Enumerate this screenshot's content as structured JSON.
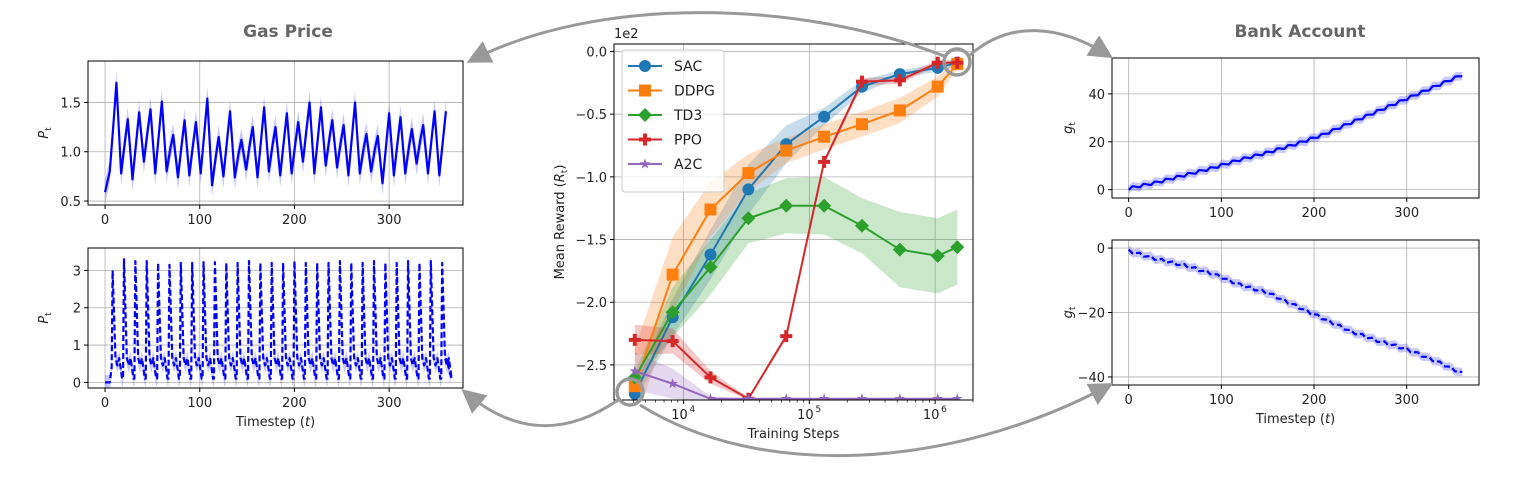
{
  "colors": {
    "SAC": "#1f77b4",
    "DDPG": "#ff7f0e",
    "TD3": "#2ca02c",
    "PPO": "#d62728",
    "A2C": "#9467bd",
    "series_blue": "#0000ff",
    "arrow": "#999999"
  },
  "panels": {
    "gas_price_title": "Gas Price",
    "bank_account_title": "Bank Account"
  },
  "chart_data": [
    {
      "id": "gas_top",
      "type": "line",
      "title": "",
      "xlabel": "",
      "ylabel": "P_t",
      "ylabel_main": "P",
      "ylabel_sub": "t",
      "xlim": [
        -18,
        378
      ],
      "ylim": [
        0.46,
        1.92
      ],
      "xticks": [
        "0",
        "100",
        "200",
        "300"
      ],
      "xtick_values": [
        0,
        100,
        200,
        300
      ],
      "yticks": [
        "0.5",
        "1.0",
        "1.5"
      ],
      "ytick_values": [
        0.5,
        1.0,
        1.5
      ],
      "grid": true,
      "linestyle": "solid",
      "start_value": 0.59,
      "peak_t": [
        12,
        24,
        36,
        48,
        60,
        72,
        84,
        96,
        108,
        120,
        132,
        144,
        156,
        168,
        180,
        192,
        204,
        216,
        228,
        240,
        252,
        264,
        276,
        288,
        300,
        312,
        324,
        336,
        348,
        360
      ],
      "peak_values": [
        1.7,
        1.33,
        1.4,
        1.43,
        1.51,
        1.17,
        1.32,
        1.3,
        1.54,
        1.15,
        1.41,
        1.12,
        1.25,
        1.45,
        1.25,
        1.39,
        1.3,
        1.5,
        1.45,
        1.32,
        1.27,
        1.5,
        1.18,
        1.16,
        1.39,
        1.35,
        1.23,
        1.27,
        1.41,
        1.41
      ],
      "trough_values": [
        0.8,
        0.78,
        0.72,
        0.9,
        0.78,
        0.8,
        0.74,
        0.76,
        0.78,
        0.66,
        0.75,
        0.74,
        0.82,
        0.74,
        0.8,
        0.76,
        0.78,
        0.9,
        0.78,
        0.86,
        0.84,
        0.76,
        0.78,
        0.8,
        0.68,
        0.76,
        0.78,
        0.88,
        0.78,
        0.76
      ],
      "band": 0.12
    },
    {
      "id": "gas_bottom",
      "type": "line",
      "title": "",
      "xlabel": "Timestep (t)",
      "xlabel_main": "Timestep (",
      "xlabel_var": "t",
      "xlabel_end": ")",
      "ylabel": "P_t",
      "ylabel_main": "P",
      "ylabel_sub": "t",
      "xlim": [
        -18,
        378
      ],
      "ylim": [
        -0.15,
        3.6
      ],
      "xticks": [
        "0",
        "100",
        "200",
        "300"
      ],
      "xtick_values": [
        0,
        100,
        200,
        300
      ],
      "yticks": [
        "0",
        "1",
        "2",
        "3"
      ],
      "ytick_values": [
        0,
        1,
        2,
        3
      ],
      "grid": true,
      "linestyle": "dashed",
      "start_value": 0.0,
      "peak_t": [
        8,
        20,
        32,
        44,
        56,
        68,
        80,
        92,
        104,
        116,
        128,
        140,
        152,
        164,
        176,
        188,
        200,
        212,
        224,
        236,
        248,
        260,
        272,
        284,
        296,
        308,
        320,
        332,
        344,
        356
      ],
      "peak_values": [
        3.0,
        3.3,
        3.25,
        3.25,
        3.2,
        3.15,
        3.2,
        3.2,
        3.22,
        3.22,
        3.2,
        3.2,
        3.25,
        3.2,
        3.2,
        3.2,
        3.25,
        3.2,
        3.2,
        3.2,
        3.25,
        3.2,
        3.2,
        3.25,
        3.2,
        3.2,
        3.25,
        3.2,
        3.25,
        3.2
      ],
      "trough_values": [
        0.4,
        0.1,
        0.1,
        0.1,
        0.1,
        0.1,
        0.1,
        0.1,
        0.1,
        0.1,
        0.1,
        0.1,
        0.1,
        0.1,
        0.1,
        0.1,
        0.1,
        0.1,
        0.1,
        0.1,
        0.1,
        0.1,
        0.1,
        0.1,
        0.1,
        0.1,
        0.1,
        0.1,
        0.1,
        0.1
      ],
      "secondary_bump": 0.65,
      "end_value": 0.65,
      "band": 0.2
    },
    {
      "id": "reward",
      "type": "line",
      "title": "",
      "xlabel": "Training Steps",
      "ylabel": "Mean Reward (R_t)",
      "ylabel_main": "Mean Reward (",
      "ylabel_var": "R",
      "ylabel_sub": "t",
      "ylabel_end": ")",
      "offset_label": "1e2",
      "xscale": "log",
      "xlim": [
        2800,
        2000000
      ],
      "ylim": [
        -2.78,
        0.06
      ],
      "xticks": [
        "10",
        "10",
        "10"
      ],
      "xtick_exponents": [
        "4",
        "5",
        "6"
      ],
      "xtick_values": [
        10000,
        100000,
        1000000
      ],
      "yticks": [
        "0.0",
        "−0.5",
        "−1.0",
        "−1.5",
        "−2.0",
        "−2.5"
      ],
      "ytick_values": [
        0,
        -0.5,
        -1.0,
        -1.5,
        -2.0,
        -2.5
      ],
      "grid": true,
      "legend": "upper-left",
      "x": [
        4096,
        8192,
        16384,
        32768,
        65536,
        131072,
        262144,
        524288,
        1048576,
        1500000
      ],
      "series": [
        {
          "name": "SAC",
          "marker": "circle",
          "values": [
            -2.73,
            -2.12,
            -1.62,
            -1.1,
            -0.74,
            -0.52,
            -0.28,
            -0.18,
            -0.13,
            -0.09
          ],
          "spread": [
            0.05,
            0.15,
            0.2,
            0.2,
            0.15,
            0.07,
            0.05,
            0.03,
            0.03,
            0.03
          ]
        },
        {
          "name": "DDPG",
          "marker": "square",
          "values": [
            -2.67,
            -1.78,
            -1.26,
            -0.97,
            -0.79,
            -0.68,
            -0.58,
            -0.47,
            -0.28,
            -0.1
          ],
          "spread": [
            0.3,
            0.3,
            0.22,
            0.15,
            0.1,
            0.1,
            0.1,
            0.1,
            0.08,
            0.04
          ]
        },
        {
          "name": "TD3",
          "marker": "diamond",
          "values": [
            -2.6,
            -2.08,
            -1.72,
            -1.33,
            -1.23,
            -1.23,
            -1.39,
            -1.58,
            -1.63,
            -1.56
          ],
          "spread": [
            0.05,
            0.2,
            0.22,
            0.2,
            0.22,
            0.23,
            0.22,
            0.3,
            0.3,
            0.3
          ]
        },
        {
          "name": "PPO",
          "marker": "plus",
          "values": [
            -2.3,
            -2.31,
            -2.6,
            -2.77,
            -2.27,
            -0.88,
            -0.24,
            -0.23,
            -0.09,
            -0.09
          ],
          "spread": [
            0.12,
            0.1,
            0.05,
            0.01,
            0.02,
            0.02,
            0.03,
            0.03,
            0.02,
            0.02
          ]
        },
        {
          "name": "A2C",
          "marker": "star",
          "values": [
            -2.55,
            -2.65,
            -2.77,
            -2.77,
            -2.77,
            -2.77,
            -2.77,
            -2.77,
            -2.77,
            -2.77
          ],
          "spread": [
            0.15,
            0.12,
            0.02,
            0.0,
            0.0,
            0.0,
            0.0,
            0.0,
            0.0,
            0.0
          ]
        }
      ]
    },
    {
      "id": "bank_top",
      "type": "line",
      "title": "",
      "xlabel": "",
      "ylabel": "g_t",
      "ylabel_main": "g",
      "ylabel_sub": "t",
      "xlim": [
        -18,
        378
      ],
      "ylim": [
        -3.5,
        55
      ],
      "xticks": [
        "0",
        "100",
        "200",
        "300"
      ],
      "xtick_values": [
        0,
        100,
        200,
        300
      ],
      "yticks": [
        "0",
        "20",
        "40"
      ],
      "ytick_values": [
        0,
        20,
        40
      ],
      "grid": true,
      "linestyle": "solid",
      "x": [
        0,
        30,
        60,
        90,
        120,
        150,
        180,
        210,
        240,
        270,
        300,
        330,
        360
      ],
      "values": [
        0.5,
        3,
        6,
        9,
        12.5,
        15.5,
        19,
        23,
        28,
        33,
        38,
        43,
        48
      ],
      "ripple": 1.2,
      "band": 1.8
    },
    {
      "id": "bank_bottom",
      "type": "line",
      "title": "",
      "xlabel": "Timestep (t)",
      "xlabel_main": "Timestep (",
      "xlabel_var": "t",
      "xlabel_end": ")",
      "ylabel": "g_t",
      "ylabel_main": "g",
      "ylabel_sub": "t",
      "xlim": [
        -18,
        378
      ],
      "ylim": [
        -42.5,
        2.5
      ],
      "xticks": [
        "0",
        "100",
        "200",
        "300"
      ],
      "xtick_values": [
        0,
        100,
        200,
        300
      ],
      "yticks": [
        "0",
        "−20",
        "−40"
      ],
      "ytick_values": [
        0,
        -20,
        -40
      ],
      "grid": true,
      "linestyle": "dashed",
      "x": [
        0,
        30,
        60,
        90,
        120,
        150,
        180,
        210,
        240,
        270,
        300,
        330,
        360
      ],
      "values": [
        0,
        -2.5,
        -4.5,
        -7,
        -10.5,
        -13,
        -17,
        -21,
        -25,
        -28,
        -30.5,
        -34,
        -38
      ],
      "ripple": 0.9,
      "band": 1.3
    }
  ]
}
